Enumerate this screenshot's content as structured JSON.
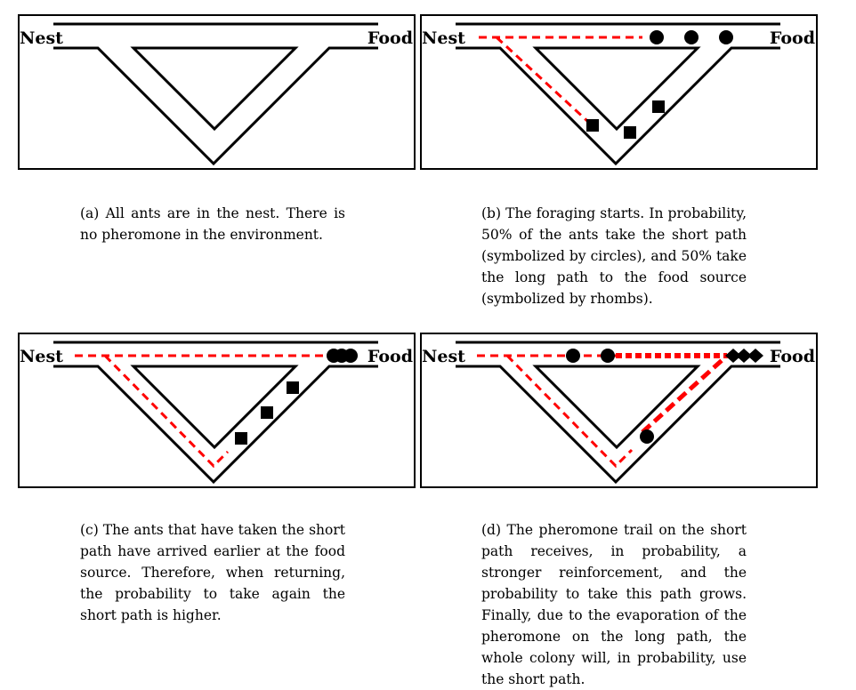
{
  "labels": {
    "nest": "Nest",
    "food": "Food"
  },
  "colors": {
    "trail": "#ff0000",
    "line": "#000000"
  },
  "panels": [
    {
      "id": "a",
      "caption": "(a) All ants are in the nest. There is no pheromone in the environment."
    },
    {
      "id": "b",
      "caption": "(b) The foraging starts. In probability, 50% of the ants take the short path (symbolized by circles), and 50% take the long path to the food source (symbolized by rhombs)."
    },
    {
      "id": "c",
      "caption": "(c) The ants that have taken the short path have arrived earlier at the food source. Therefore, when returning, the probability to take again the short path is higher."
    },
    {
      "id": "d",
      "caption": "(d) The pheromone trail on the short path receives, in probability, a stronger reinforcement, and the probability to take this path grows. Finally, due to the evaporation of the pheromone on the long path, the whole colony will, in probability, use the short path."
    }
  ]
}
